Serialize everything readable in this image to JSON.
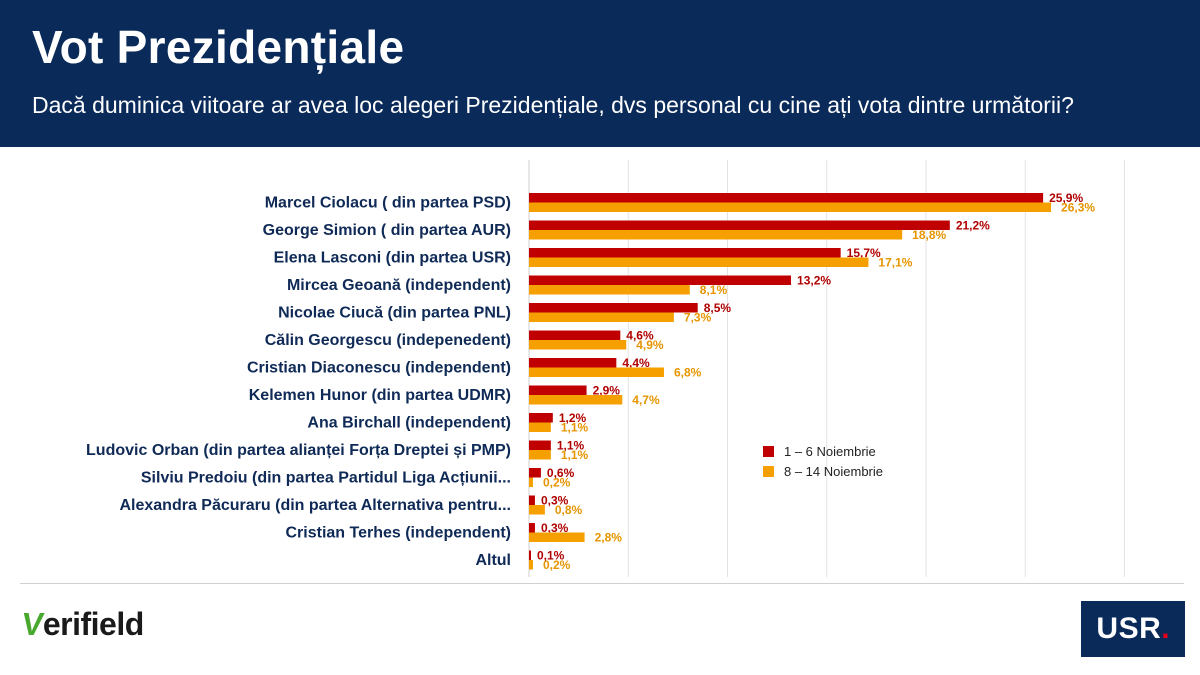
{
  "header": {
    "title": "Vot Prezidențiale",
    "subtitle": "Dacă duminica viitoare ar avea loc alegeri Prezidențiale, dvs personal cu cine ați vota dintre următorii?"
  },
  "chart_data": {
    "type": "bar",
    "orientation": "horizontal",
    "categories": [
      "Marcel Ciolacu ( din partea PSD)",
      "George Simion ( din partea AUR)",
      "Elena Lasconi (din partea USR)",
      "Mircea Geoană (independent)",
      "Nicolae Ciucă (din partea PNL)",
      "Călin Georgescu (indepenedent)",
      "Cristian Diaconescu (independent)",
      "Kelemen Hunor (din partea UDMR)",
      "Ana Birchall (independent)",
      "Ludovic Orban (din partea alianței Forța Dreptei și PMP)",
      "Silviu Predoiu (din partea Partidul Liga Acțiunii...",
      "Alexandra Păcuraru (din partea Alternativa pentru...",
      "Cristian Terhes (independent)",
      "Altul"
    ],
    "series": [
      {
        "name": "1 – 6 Noiembrie",
        "color": "#c00000",
        "values": [
          25.9,
          21.2,
          15.7,
          13.2,
          8.5,
          4.6,
          4.4,
          2.9,
          1.2,
          1.1,
          0.6,
          0.3,
          0.3,
          0.1
        ],
        "labels": [
          "25,9%",
          "21,2%",
          "15,7%",
          "13,2%",
          "8,5%",
          "4,6%",
          "4,4%",
          "2,9%",
          "1,2%",
          "1,1%",
          "0,6%",
          "0,3%",
          "0,3%",
          "0,1%"
        ]
      },
      {
        "name": "8 – 14 Noiembrie",
        "color": "#f5a000",
        "values": [
          26.3,
          18.8,
          17.1,
          8.1,
          7.3,
          4.9,
          6.8,
          4.7,
          1.1,
          1.1,
          0.2,
          0.8,
          2.8,
          0.2
        ],
        "labels": [
          "26,3%",
          "18,8%",
          "17,1%",
          "8,1%",
          "7,3%",
          "4,9%",
          "6,8%",
          "4,7%",
          "1,1%",
          "1,1%",
          "0,2%",
          "0,8%",
          "2,8%",
          "0,2%"
        ]
      }
    ],
    "xlim": [
      0,
      30
    ],
    "grid": true,
    "legend_position": "right-middle"
  },
  "footer": {
    "brand_left_mark": "V",
    "brand_left_text": "erifield",
    "brand_right_text": "USR",
    "brand_right_dot": "."
  }
}
